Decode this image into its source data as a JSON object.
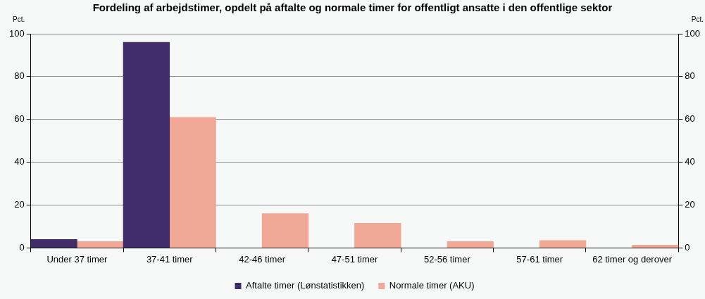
{
  "chart_data": {
    "type": "bar",
    "title": "Fordeling af arbejdstimer, opdelt på aftalte og normale timer for offentligt ansatte i den offentlige sektor",
    "ylabel": "Pct.",
    "y2label": "Pct.",
    "categories": [
      "Under 37 timer",
      "37-41 timer",
      "42-46 timer",
      "47-51 timer",
      "52-56 timer",
      "57-61 timer",
      "62 timer og derover"
    ],
    "series": [
      {
        "name": "Aftalte timer (Lønstatistikken)",
        "color": "#422d6b",
        "values": [
          4,
          96,
          0,
          0,
          0,
          0,
          0
        ]
      },
      {
        "name": "Normale timer (AKU)",
        "color": "#f2a896",
        "values": [
          3,
          61,
          16,
          11.5,
          3,
          3.5,
          1.3
        ]
      }
    ],
    "ylim": [
      0,
      100
    ],
    "yticks": [
      0,
      20,
      40,
      60,
      80,
      100
    ],
    "y2lim": [
      0,
      100
    ],
    "y2ticks": [
      0,
      20,
      40,
      60,
      80,
      100
    ],
    "grid": "y",
    "legend": "bottom"
  }
}
